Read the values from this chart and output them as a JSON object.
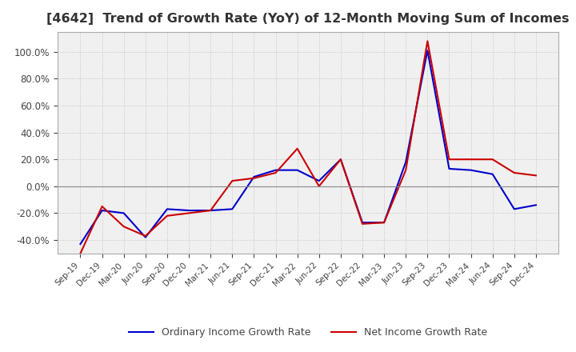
{
  "title": "[4642]  Trend of Growth Rate (YoY) of 12-Month Moving Sum of Incomes",
  "title_fontsize": 11.5,
  "ylim": [
    -0.5,
    1.15
  ],
  "yticks": [
    -0.4,
    -0.2,
    0.0,
    0.2,
    0.4,
    0.6,
    0.8,
    1.0
  ],
  "background_color": "#ffffff",
  "plot_bg_color": "#f0f0f0",
  "grid_color": "#ffffff",
  "ordinary_color": "#0000cc",
  "net_color": "#cc0000",
  "legend_labels": [
    "Ordinary Income Growth Rate",
    "Net Income Growth Rate"
  ],
  "x_labels": [
    "Sep-19",
    "Dec-19",
    "Mar-20",
    "Jun-20",
    "Sep-20",
    "Dec-20",
    "Mar-21",
    "Jun-21",
    "Sep-21",
    "Dec-21",
    "Mar-22",
    "Jun-22",
    "Sep-22",
    "Dec-22",
    "Mar-23",
    "Jun-23",
    "Sep-23",
    "Dec-23",
    "Mar-24",
    "Jun-24",
    "Sep-24",
    "Dec-24"
  ],
  "ordinary_income": [
    -0.43,
    -0.18,
    -0.2,
    -0.38,
    -0.17,
    -0.18,
    -0.18,
    -0.17,
    0.07,
    0.12,
    0.12,
    0.04,
    0.2,
    -0.27,
    -0.27,
    0.18,
    1.01,
    0.13,
    0.12,
    0.09,
    -0.17,
    -0.14
  ],
  "net_income": [
    -0.5,
    -0.15,
    -0.3,
    -0.37,
    -0.22,
    -0.2,
    -0.18,
    0.04,
    0.06,
    0.1,
    0.28,
    0.0,
    0.2,
    -0.28,
    -0.27,
    0.12,
    1.08,
    0.2,
    0.2,
    0.2,
    0.1,
    0.08
  ]
}
